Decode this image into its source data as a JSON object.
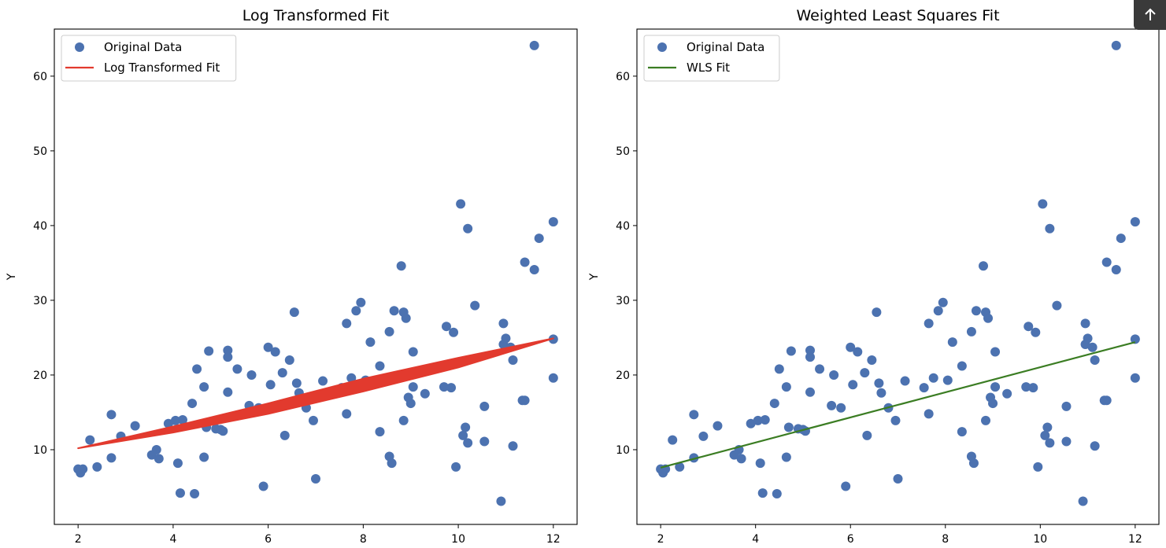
{
  "scroll_top_button": {
    "icon": "arrow-up-icon"
  },
  "chart_data": [
    {
      "type": "scatter",
      "title": "Log Transformed Fit",
      "xlabel": "",
      "ylabel": "Y",
      "xlim": [
        1.5,
        12.5
      ],
      "ylim": [
        0,
        66.3
      ],
      "xticks": [
        2,
        4,
        6,
        8,
        10,
        12
      ],
      "yticks": [
        10,
        20,
        30,
        40,
        50,
        60
      ],
      "grid": false,
      "legend": {
        "position": "top-left",
        "entries": [
          "Original Data",
          "Log Transformed Fit"
        ]
      },
      "series": [
        {
          "name": "Original Data",
          "kind": "scatter",
          "color": "#4C72B0",
          "points": [
            [
              2.0,
              7.4
            ],
            [
              2.05,
              6.9
            ],
            [
              2.1,
              7.4
            ],
            [
              2.25,
              11.3
            ],
            [
              2.4,
              7.7
            ],
            [
              2.7,
              14.7
            ],
            [
              2.7,
              8.9
            ],
            [
              2.9,
              11.8
            ],
            [
              3.2,
              13.2
            ],
            [
              3.55,
              9.3
            ],
            [
              3.65,
              10.0
            ],
            [
              3.7,
              8.8
            ],
            [
              3.9,
              13.5
            ],
            [
              4.05,
              13.9
            ],
            [
              4.1,
              8.2
            ],
            [
              4.2,
              14.0
            ],
            [
              4.15,
              4.2
            ],
            [
              4.4,
              16.2
            ],
            [
              4.45,
              4.1
            ],
            [
              4.5,
              20.8
            ],
            [
              4.65,
              18.4
            ],
            [
              4.65,
              9.0
            ],
            [
              4.7,
              13.0
            ],
            [
              4.75,
              23.2
            ],
            [
              4.9,
              12.8
            ],
            [
              5.0,
              12.7
            ],
            [
              5.05,
              12.5
            ],
            [
              5.15,
              23.3
            ],
            [
              5.15,
              22.4
            ],
            [
              5.15,
              17.7
            ],
            [
              5.35,
              20.8
            ],
            [
              5.6,
              15.9
            ],
            [
              5.65,
              20.0
            ],
            [
              5.8,
              15.6
            ],
            [
              5.9,
              5.1
            ],
            [
              6.0,
              23.7
            ],
            [
              6.05,
              18.7
            ],
            [
              6.15,
              23.1
            ],
            [
              6.3,
              20.3
            ],
            [
              6.35,
              11.9
            ],
            [
              6.45,
              22.0
            ],
            [
              6.55,
              28.4
            ],
            [
              6.6,
              18.9
            ],
            [
              6.65,
              17.6
            ],
            [
              6.8,
              15.6
            ],
            [
              6.95,
              13.9
            ],
            [
              7.0,
              6.1
            ],
            [
              7.15,
              19.2
            ],
            [
              7.55,
              18.3
            ],
            [
              7.65,
              26.9
            ],
            [
              7.65,
              14.8
            ],
            [
              7.75,
              19.6
            ],
            [
              7.85,
              28.6
            ],
            [
              7.95,
              29.7
            ],
            [
              8.05,
              19.3
            ],
            [
              8.15,
              24.4
            ],
            [
              8.35,
              21.2
            ],
            [
              8.35,
              12.4
            ],
            [
              8.55,
              25.8
            ],
            [
              8.55,
              9.1
            ],
            [
              8.6,
              8.2
            ],
            [
              8.65,
              28.6
            ],
            [
              8.8,
              34.6
            ],
            [
              8.85,
              28.4
            ],
            [
              8.85,
              13.9
            ],
            [
              8.9,
              27.6
            ],
            [
              8.95,
              17.0
            ],
            [
              9.0,
              16.2
            ],
            [
              9.05,
              18.4
            ],
            [
              9.05,
              23.1
            ],
            [
              9.3,
              17.5
            ],
            [
              9.7,
              18.4
            ],
            [
              9.75,
              26.5
            ],
            [
              9.85,
              18.3
            ],
            [
              9.9,
              25.7
            ],
            [
              9.95,
              7.7
            ],
            [
              10.05,
              42.9
            ],
            [
              10.1,
              11.9
            ],
            [
              10.2,
              39.6
            ],
            [
              10.15,
              13.0
            ],
            [
              10.2,
              10.9
            ],
            [
              10.35,
              29.3
            ],
            [
              10.55,
              15.8
            ],
            [
              10.55,
              11.1
            ],
            [
              10.9,
              3.1
            ],
            [
              10.95,
              24.1
            ],
            [
              10.95,
              26.9
            ],
            [
              11.0,
              24.9
            ],
            [
              11.1,
              23.7
            ],
            [
              11.15,
              22.0
            ],
            [
              11.15,
              10.5
            ],
            [
              11.35,
              16.6
            ],
            [
              11.4,
              16.6
            ],
            [
              11.4,
              35.1
            ],
            [
              11.6,
              34.1
            ],
            [
              11.6,
              64.1
            ],
            [
              11.7,
              38.3
            ],
            [
              12.0,
              40.5
            ],
            [
              12.0,
              24.8
            ],
            [
              12.0,
              19.6
            ]
          ]
        },
        {
          "name": "Log Transformed Fit",
          "kind": "fit_band",
          "color": "#E23A2E",
          "lower": [
            [
              2.0,
              10.2
            ],
            [
              4.0,
              12.3
            ],
            [
              6.0,
              14.8
            ],
            [
              8.0,
              17.8
            ],
            [
              10.0,
              21.0
            ],
            [
              12.0,
              24.9
            ]
          ],
          "upper": [
            [
              2.0,
              10.2
            ],
            [
              4.0,
              13.1
            ],
            [
              6.0,
              16.2
            ],
            [
              8.0,
              19.5
            ],
            [
              10.0,
              22.3
            ],
            [
              12.0,
              24.9
            ]
          ]
        }
      ]
    },
    {
      "type": "scatter",
      "title": "Weighted Least Squares Fit",
      "xlabel": "",
      "ylabel": "Y",
      "xlim": [
        1.5,
        12.5
      ],
      "ylim": [
        0,
        66.3
      ],
      "xticks": [
        2,
        4,
        6,
        8,
        10,
        12
      ],
      "yticks": [
        10,
        20,
        30,
        40,
        50,
        60
      ],
      "grid": false,
      "legend": {
        "position": "top-left",
        "entries": [
          "Original Data",
          "WLS Fit"
        ]
      },
      "series": [
        {
          "name": "Original Data",
          "kind": "scatter",
          "color": "#4C72B0",
          "same_points_as_chart": 0
        },
        {
          "name": "WLS Fit",
          "kind": "line",
          "color": "#3B7D23",
          "x": [
            2.0,
            12.0
          ],
          "y": [
            7.6,
            24.4
          ]
        }
      ]
    }
  ]
}
